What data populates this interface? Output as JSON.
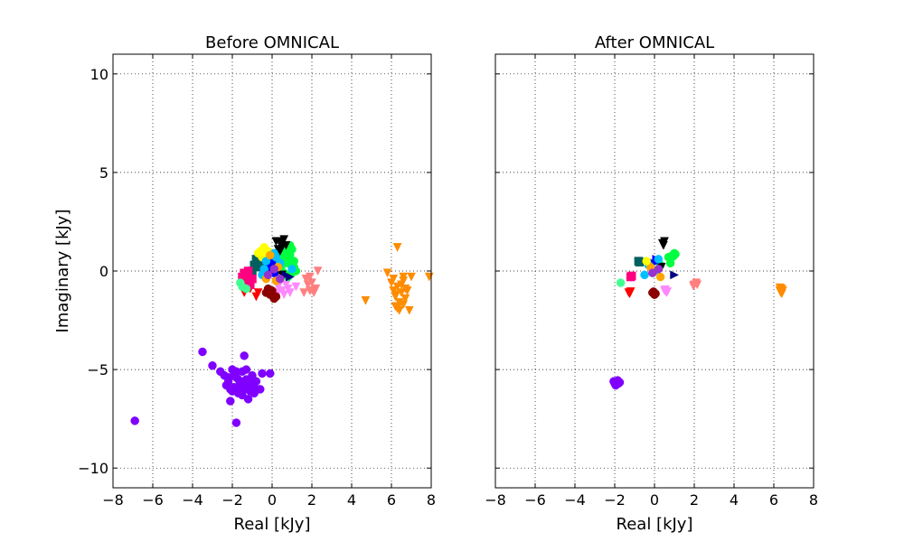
{
  "figure": {
    "ylabel": "Imaginary [kJy]"
  },
  "chart_data": [
    {
      "type": "scatter",
      "title": "Before OMNICAL",
      "xlabel": "Real [kJy]",
      "ylabel": "Imaginary [kJy]",
      "xlim": [
        -8,
        8
      ],
      "ylim": [
        -11,
        11
      ],
      "grid": true,
      "xticks": [
        "−8",
        "−6",
        "−4",
        "−2",
        "0",
        "2",
        "4",
        "6",
        "8"
      ],
      "yticks": [
        "−10",
        "−5",
        "0",
        "5",
        "10"
      ],
      "series": [
        {
          "color": "#8000ff",
          "marker": "circle",
          "points": [
            [
              -6.9,
              -7.6
            ],
            [
              -3.5,
              -4.1
            ],
            [
              -3.0,
              -4.8
            ],
            [
              -1.4,
              -4.3
            ],
            [
              -1.8,
              -7.7
            ],
            [
              -2.1,
              -6.6
            ],
            [
              -1.2,
              -6.5
            ],
            [
              -0.6,
              -6.0
            ],
            [
              -0.5,
              -5.2
            ],
            [
              -0.1,
              -5.2
            ],
            [
              -2.6,
              -5.1
            ],
            [
              -2.4,
              -5.3
            ],
            [
              -2.2,
              -5.6
            ],
            [
              -2.0,
              -5.0
            ],
            [
              -1.9,
              -5.9
            ],
            [
              -1.8,
              -5.4
            ],
            [
              -1.7,
              -6.2
            ],
            [
              -1.6,
              -5.7
            ],
            [
              -1.5,
              -5.1
            ],
            [
              -1.4,
              -6.0
            ],
            [
              -1.3,
              -5.5
            ],
            [
              -1.2,
              -5.8
            ],
            [
              -1.1,
              -6.1
            ],
            [
              -1.0,
              -5.3
            ],
            [
              -0.9,
              -5.9
            ],
            [
              -0.8,
              -5.6
            ],
            [
              -2.1,
              -6.0
            ],
            [
              -1.9,
              -5.2
            ],
            [
              -1.7,
              -5.5
            ],
            [
              -1.5,
              -6.3
            ],
            [
              -1.3,
              -5.0
            ],
            [
              -1.1,
              -5.6
            ],
            [
              -0.9,
              -6.2
            ],
            [
              -2.3,
              -5.8
            ],
            [
              -1.6,
              -6.0
            ],
            [
              -2.0,
              -6.1
            ],
            [
              -1.2,
              -5.9
            ],
            [
              -1.8,
              -5.1
            ],
            [
              -2.2,
              -5.4
            ],
            [
              -1.0,
              -5.8
            ]
          ]
        },
        {
          "color": "#ff8c00",
          "marker": "tri-down",
          "points": [
            [
              4.7,
              -1.5
            ],
            [
              5.8,
              -0.1
            ],
            [
              6.3,
              1.2
            ],
            [
              6.6,
              -0.3
            ],
            [
              7.0,
              -0.3
            ],
            [
              7.9,
              -0.3
            ],
            [
              6.0,
              -0.6
            ],
            [
              6.1,
              -1.0
            ],
            [
              6.2,
              -1.3
            ],
            [
              6.3,
              -0.8
            ],
            [
              6.4,
              -1.6
            ],
            [
              6.5,
              -1.1
            ],
            [
              6.6,
              -0.5
            ],
            [
              6.7,
              -1.4
            ],
            [
              6.2,
              -1.8
            ],
            [
              6.4,
              -2.0
            ],
            [
              6.8,
              -1.0
            ],
            [
              6.9,
              -2.0
            ],
            [
              6.1,
              -0.4
            ],
            [
              6.5,
              -0.7
            ],
            [
              6.3,
              -1.9
            ],
            [
              6.6,
              -1.7
            ],
            [
              6.2,
              -1.2
            ],
            [
              6.7,
              -0.9
            ]
          ]
        },
        {
          "color": "#ff7f7f",
          "marker": "tri-down",
          "points": [
            [
              1.7,
              -0.4
            ],
            [
              1.8,
              -0.7
            ],
            [
              1.9,
              -1.0
            ],
            [
              2.0,
              -0.6
            ],
            [
              2.1,
              -1.1
            ],
            [
              2.2,
              -0.9
            ],
            [
              2.3,
              0.0
            ],
            [
              1.6,
              -1.1
            ],
            [
              1.9,
              -0.3
            ]
          ]
        },
        {
          "color": "#ff88ff",
          "marker": "tri-down",
          "points": [
            [
              0.3,
              -0.8
            ],
            [
              0.5,
              -1.0
            ],
            [
              0.8,
              -0.9
            ],
            [
              0.6,
              -1.2
            ],
            [
              0.4,
              -0.6
            ],
            [
              0.9,
              -1.1
            ],
            [
              0.7,
              -0.7
            ],
            [
              0.3,
              -1.1
            ],
            [
              1.2,
              -0.8
            ]
          ]
        },
        {
          "color": "#8b0000",
          "marker": "circle",
          "points": [
            [
              -0.3,
              -1.1
            ],
            [
              -0.1,
              -1.2
            ],
            [
              0.0,
              -1.0
            ],
            [
              0.2,
              -1.3
            ],
            [
              -0.2,
              -0.9
            ],
            [
              0.1,
              -1.4
            ],
            [
              -0.1,
              -1.0
            ]
          ]
        },
        {
          "color": "#ff0000",
          "marker": "tri-down",
          "points": [
            [
              -1.4,
              -1.1
            ],
            [
              -0.8,
              -1.3
            ],
            [
              -1.1,
              -0.9
            ],
            [
              -0.7,
              -1.1
            ]
          ]
        },
        {
          "color": "#00ff40",
          "marker": "circle",
          "points": [
            [
              0.8,
              0.4
            ],
            [
              0.9,
              0.8
            ],
            [
              1.0,
              1.1
            ],
            [
              0.7,
              1.0
            ],
            [
              1.1,
              0.5
            ],
            [
              0.9,
              1.3
            ],
            [
              0.6,
              0.6
            ],
            [
              1.1,
              0.2
            ],
            [
              0.7,
              -0.2
            ],
            [
              0.5,
              0.3
            ],
            [
              0.4,
              0.9
            ],
            [
              1.0,
              -0.1
            ],
            [
              0.8,
              -0.3
            ],
            [
              0.3,
              0.5
            ],
            [
              0.6,
              -0.1
            ],
            [
              1.2,
              0.0
            ]
          ]
        },
        {
          "color": "#000000",
          "marker": "tri-down",
          "points": [
            [
              0.2,
              1.5
            ],
            [
              0.4,
              1.4
            ],
            [
              0.5,
              1.2
            ],
            [
              0.6,
              1.6
            ],
            [
              0.3,
              1.1
            ],
            [
              0.7,
              1.3
            ],
            [
              0.4,
              1.0
            ],
            [
              0.5,
              1.5
            ],
            [
              0.1,
              0.3
            ],
            [
              0.3,
              0.0
            ],
            [
              0.5,
              -0.2
            ]
          ]
        },
        {
          "color": "#006060",
          "marker": "square",
          "points": [
            [
              -0.9,
              0.3
            ],
            [
              -0.7,
              0.5
            ],
            [
              -1.0,
              0.0
            ],
            [
              -0.8,
              0.6
            ],
            [
              -0.6,
              0.2
            ]
          ]
        },
        {
          "color": "#ff0080",
          "marker": "square",
          "points": [
            [
              -1.3,
              -0.2
            ],
            [
              -1.2,
              -0.5
            ],
            [
              -1.4,
              -0.1
            ],
            [
              -1.1,
              -0.7
            ],
            [
              -1.0,
              -0.4
            ],
            [
              -1.3,
              -0.7
            ],
            [
              -1.5,
              -0.3
            ],
            [
              -1.2,
              0.0
            ]
          ]
        },
        {
          "color": "#40ff90",
          "marker": "circle",
          "points": [
            [
              -1.5,
              -0.8
            ],
            [
              -1.3,
              -0.9
            ],
            [
              -1.6,
              -0.6
            ]
          ]
        },
        {
          "color": "#ffff00",
          "marker": "circle",
          "points": [
            [
              -0.5,
              0.7
            ],
            [
              -0.6,
              1.0
            ],
            [
              -0.4,
              1.2
            ],
            [
              -0.7,
              0.9
            ],
            [
              -0.2,
              1.0
            ]
          ]
        },
        {
          "color": "#0000ff",
          "marker": "circle",
          "points": [
            [
              -0.2,
              0.2
            ],
            [
              0.0,
              0.5
            ],
            [
              0.1,
              -0.1
            ],
            [
              -0.1,
              0.4
            ],
            [
              0.2,
              0.3
            ],
            [
              0.0,
              0.0
            ]
          ]
        },
        {
          "color": "#00bfff",
          "marker": "circle",
          "points": [
            [
              -0.4,
              0.1
            ],
            [
              -0.3,
              0.5
            ],
            [
              0.2,
              0.7
            ],
            [
              0.4,
              0.4
            ],
            [
              -0.5,
              -0.2
            ],
            [
              0.1,
              0.9
            ],
            [
              1.0,
              0.1
            ]
          ]
        },
        {
          "color": "#000080",
          "marker": "tri-right",
          "points": [
            [
              0.7,
              -0.2
            ],
            [
              0.9,
              -0.3
            ]
          ]
        },
        {
          "color": "#ffa500",
          "marker": "circle",
          "points": [
            [
              -0.1,
              0.8
            ],
            [
              0.2,
              -0.5
            ],
            [
              -0.3,
              -0.4
            ],
            [
              0.3,
              0.2
            ]
          ]
        },
        {
          "color": "#9932cc",
          "marker": "circle",
          "points": [
            [
              0.1,
              0.1
            ],
            [
              -0.2,
              -0.2
            ],
            [
              0.4,
              -0.4
            ]
          ]
        }
      ]
    },
    {
      "type": "scatter",
      "title": "After OMNICAL",
      "xlabel": "Real [kJy]",
      "ylabel": "",
      "xlim": [
        -8,
        8
      ],
      "ylim": [
        -11,
        11
      ],
      "grid": true,
      "xticks": [
        "−8",
        "−6",
        "−4",
        "−2",
        "0",
        "2",
        "4",
        "6",
        "8"
      ],
      "yticks": [],
      "series": [
        {
          "color": "#8000ff",
          "marker": "circle",
          "points": [
            [
              -1.9,
              -5.6
            ],
            [
              -1.8,
              -5.7
            ],
            [
              -2.0,
              -5.7
            ],
            [
              -1.85,
              -5.55
            ],
            [
              -1.95,
              -5.8
            ],
            [
              -1.75,
              -5.65
            ],
            [
              -1.9,
              -5.75
            ],
            [
              -2.05,
              -5.6
            ]
          ]
        },
        {
          "color": "#ff8c00",
          "marker": "tri-down",
          "points": [
            [
              6.3,
              -1.0
            ],
            [
              6.4,
              -0.9
            ],
            [
              6.35,
              -1.1
            ],
            [
              6.45,
              -1.0
            ],
            [
              6.3,
              -0.85
            ],
            [
              6.4,
              -1.15
            ]
          ]
        },
        {
          "color": "#ff7f7f",
          "marker": "tri-down",
          "points": [
            [
              2.0,
              -0.7
            ],
            [
              2.1,
              -0.6
            ],
            [
              1.95,
              -0.75
            ],
            [
              2.15,
              -0.7
            ]
          ]
        },
        {
          "color": "#ff88ff",
          "marker": "tri-down",
          "points": [
            [
              0.5,
              -1.0
            ],
            [
              0.6,
              -1.1
            ],
            [
              0.55,
              -0.95
            ],
            [
              0.65,
              -1.05
            ]
          ]
        },
        {
          "color": "#8b0000",
          "marker": "circle",
          "points": [
            [
              -0.1,
              -1.1
            ],
            [
              0.0,
              -1.2
            ],
            [
              -0.05,
              -1.05
            ],
            [
              0.05,
              -1.15
            ]
          ]
        },
        {
          "color": "#ff0000",
          "marker": "tri-down",
          "points": [
            [
              -1.3,
              -1.1
            ],
            [
              -1.2,
              -1.05
            ],
            [
              -1.25,
              -1.15
            ]
          ]
        },
        {
          "color": "#00ff40",
          "marker": "circle",
          "points": [
            [
              0.9,
              0.8
            ],
            [
              1.0,
              0.9
            ],
            [
              0.95,
              0.75
            ],
            [
              1.05,
              0.85
            ],
            [
              0.3,
              0.3
            ],
            [
              0.8,
              0.4
            ],
            [
              0.7,
              0.7
            ]
          ]
        },
        {
          "color": "#000000",
          "marker": "tri-down",
          "points": [
            [
              0.4,
              1.4
            ],
            [
              0.5,
              1.5
            ],
            [
              0.45,
              1.3
            ],
            [
              0.35,
              0.2
            ]
          ]
        },
        {
          "color": "#006060",
          "marker": "square",
          "points": [
            [
              -0.8,
              0.5
            ],
            [
              -0.75,
              0.45
            ]
          ]
        },
        {
          "color": "#ff0080",
          "marker": "square",
          "points": [
            [
              -1.2,
              -0.3
            ],
            [
              -1.15,
              -0.25
            ]
          ]
        },
        {
          "color": "#40ff90",
          "marker": "circle",
          "points": [
            [
              -1.7,
              -0.6
            ]
          ]
        },
        {
          "color": "#0000ff",
          "marker": "tri-right",
          "points": [
            [
              0.1,
              0.6
            ],
            [
              0.0,
              0.4
            ]
          ]
        },
        {
          "color": "#00bfff",
          "marker": "circle",
          "points": [
            [
              -0.3,
              0.3
            ],
            [
              0.2,
              0.6
            ],
            [
              -0.5,
              -0.2
            ],
            [
              0.0,
              0.0
            ]
          ]
        },
        {
          "color": "#000080",
          "marker": "tri-right",
          "points": [
            [
              1.0,
              -0.2
            ]
          ]
        },
        {
          "color": "#ffa500",
          "marker": "circle",
          "points": [
            [
              -0.2,
              0.2
            ],
            [
              0.3,
              -0.3
            ]
          ]
        },
        {
          "color": "#9932cc",
          "marker": "circle",
          "points": [
            [
              -0.1,
              -0.1
            ],
            [
              0.2,
              0.1
            ]
          ]
        },
        {
          "color": "#ffff00",
          "marker": "circle",
          "points": [
            [
              -0.4,
              0.5
            ]
          ]
        }
      ]
    }
  ]
}
